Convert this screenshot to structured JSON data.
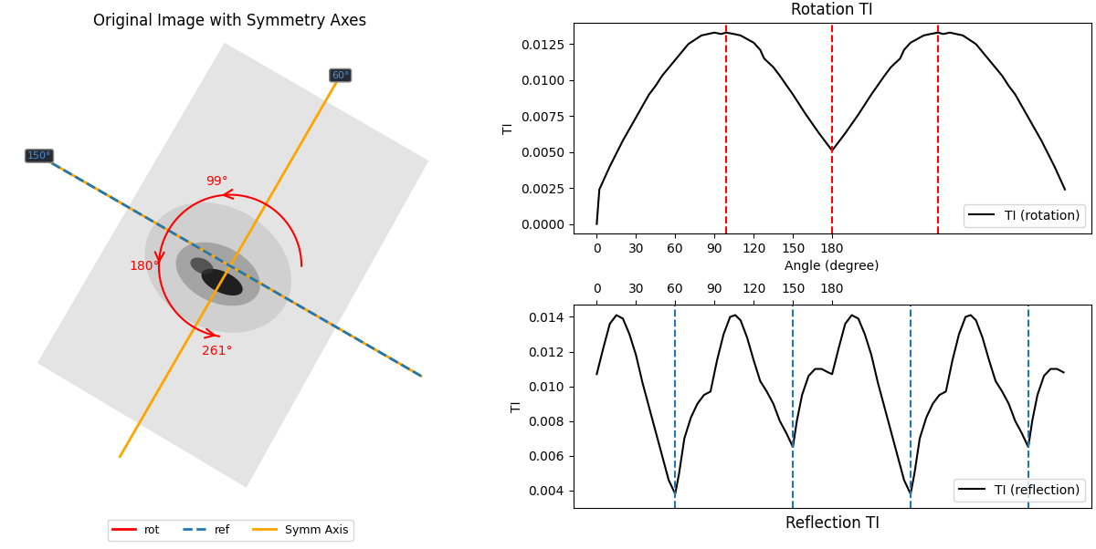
{
  "chart_data": [
    {
      "type": "image",
      "title": "Original Image with Symmetry Axes",
      "symmetry_axes": [
        60,
        150
      ],
      "symmetry_labels": [
        "60°",
        "150°"
      ],
      "reflection_axes": [
        150
      ],
      "rotation_angles": [
        99,
        180,
        261
      ],
      "rotation_labels": [
        "99°",
        "180°",
        "261°"
      ],
      "series": [
        {
          "name": "rot",
          "color": "red",
          "line_style": "solid"
        },
        {
          "name": "ref",
          "color": "#1f77b4",
          "line_style": "dashed"
        },
        {
          "name": "Symm Axis",
          "color": "orange",
          "line_style": "solid"
        }
      ],
      "legend": "lower center"
    },
    {
      "type": "line",
      "title": "Rotation TI",
      "x_label": "Angle (degree)",
      "y_label": "TI",
      "x": [
        0,
        2,
        10,
        20,
        30,
        40,
        45,
        50,
        60,
        70,
        80,
        90,
        95,
        99,
        105,
        110,
        120,
        125,
        128,
        135,
        140,
        150,
        160,
        170,
        180,
        190,
        200,
        210,
        220,
        225,
        232,
        235,
        240,
        250,
        255,
        261,
        265,
        270,
        280,
        290,
        300,
        310,
        315,
        320,
        330,
        340,
        350,
        358
      ],
      "series": [
        {
          "name": "TI (rotation)",
          "color": "black",
          "values": [
            0.0,
            0.0024,
            0.004,
            0.0058,
            0.0074,
            0.009,
            0.0096,
            0.0103,
            0.0114,
            0.0125,
            0.0131,
            0.0133,
            0.0132,
            0.0133,
            0.0132,
            0.0131,
            0.0126,
            0.0121,
            0.0115,
            0.0109,
            0.0103,
            0.009,
            0.0076,
            0.0063,
            0.0051,
            0.0063,
            0.0076,
            0.009,
            0.0103,
            0.0109,
            0.0115,
            0.0121,
            0.0126,
            0.0131,
            0.0132,
            0.0133,
            0.0132,
            0.0133,
            0.0131,
            0.0125,
            0.0114,
            0.0103,
            0.0096,
            0.009,
            0.0074,
            0.0058,
            0.004,
            0.0024
          ]
        }
      ],
      "vlines": [
        99,
        180,
        261
      ],
      "vline_color": "red",
      "xlim": [
        -18,
        378
      ],
      "ylim": [
        -0.00065,
        0.014
      ],
      "xticks": [
        0,
        30,
        60,
        90,
        120,
        150,
        180
      ],
      "yticks": [
        {
          "value": 0.0,
          "label": "0.0000"
        },
        {
          "value": 0.0025,
          "label": "0.0025"
        },
        {
          "value": 0.005,
          "label": "0.0050"
        },
        {
          "value": 0.0075,
          "label": "0.0075"
        },
        {
          "value": 0.01,
          "label": "0.0100"
        },
        {
          "value": 0.0125,
          "label": "0.0125"
        }
      ],
      "legend": "lower right"
    },
    {
      "type": "line",
      "title": null,
      "x_label": "Reflection TI",
      "y_label": "TI",
      "x": [
        0,
        5,
        10,
        15,
        20,
        25,
        30,
        35,
        40,
        45,
        50,
        55,
        60,
        63,
        67,
        72,
        77,
        82,
        87,
        92,
        97,
        102,
        106,
        110,
        115,
        120,
        125,
        130,
        135,
        140,
        145,
        150,
        153,
        157,
        162,
        167,
        172,
        177,
        180,
        185,
        190,
        195,
        200,
        205,
        210,
        215,
        220,
        225,
        230,
        235,
        240,
        243,
        247,
        252,
        257,
        262,
        267,
        272,
        277,
        282,
        286,
        290,
        295,
        300,
        305,
        310,
        315,
        320,
        325,
        330,
        333,
        337,
        342,
        347,
        352,
        357
      ],
      "series": [
        {
          "name": "TI (reflection)",
          "color": "black",
          "values": [
            0.0107,
            0.0122,
            0.0136,
            0.0141,
            0.0139,
            0.013,
            0.0118,
            0.0102,
            0.0088,
            0.0074,
            0.006,
            0.0046,
            0.0038,
            0.005,
            0.007,
            0.0082,
            0.009,
            0.0095,
            0.0097,
            0.0115,
            0.013,
            0.014,
            0.0141,
            0.0138,
            0.0128,
            0.0115,
            0.0103,
            0.0097,
            0.009,
            0.008,
            0.0073,
            0.0065,
            0.008,
            0.0095,
            0.0106,
            0.011,
            0.011,
            0.0108,
            0.0107,
            0.0122,
            0.0136,
            0.0141,
            0.0139,
            0.013,
            0.0118,
            0.0102,
            0.0088,
            0.0074,
            0.006,
            0.0046,
            0.0038,
            0.005,
            0.007,
            0.0082,
            0.009,
            0.0095,
            0.0097,
            0.0115,
            0.013,
            0.014,
            0.0141,
            0.0138,
            0.0128,
            0.0115,
            0.0103,
            0.0097,
            0.009,
            0.008,
            0.0073,
            0.0065,
            0.008,
            0.0095,
            0.0106,
            0.011,
            0.011,
            0.0108
          ]
        }
      ],
      "vlines": [
        60,
        150,
        240,
        330
      ],
      "vline_color": "#1f77b4",
      "xlim": [
        -18,
        378
      ],
      "ylim": [
        0.003,
        0.0147
      ],
      "xticks": [
        0,
        30,
        60,
        90,
        120,
        150,
        180
      ],
      "yticks": [
        0.004,
        0.006,
        0.008,
        {
          "value": 0.01,
          "label": "0.010"
        },
        0.012,
        0.014
      ],
      "legend": "lower right"
    }
  ]
}
